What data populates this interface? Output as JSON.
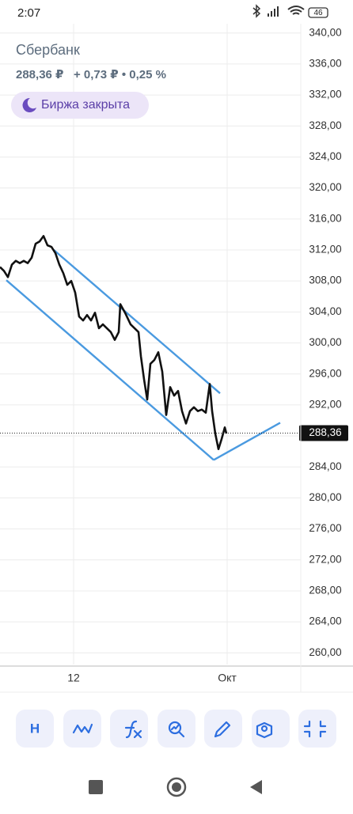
{
  "status_bar": {
    "time": "2:07",
    "battery": "46"
  },
  "header": {
    "title": "Сбербанк",
    "quote": "288,36 ₽   + 0,73 ₽ • 0,25 %",
    "badge": "Биржа закрыта"
  },
  "chart_data": {
    "type": "line",
    "x": [
      0,
      5,
      10,
      15,
      20,
      25,
      30,
      35,
      40,
      45,
      50,
      55,
      60,
      65,
      70,
      75,
      80,
      85,
      90,
      95,
      100,
      105,
      110,
      115,
      120,
      125,
      130,
      135,
      140,
      145,
      150,
      152,
      158,
      165,
      170,
      175,
      178,
      182,
      186,
      190,
      195,
      200,
      205,
      210,
      215,
      220,
      225,
      230,
      235,
      240,
      245,
      250,
      255,
      260,
      265,
      268,
      272,
      276,
      280,
      284,
      286
    ],
    "series": [
      {
        "color": "#111111",
        "values": [
          309.8,
          309.3,
          308.5,
          310.1,
          310.6,
          310.3,
          310.6,
          310.3,
          311.0,
          312.8,
          313.1,
          313.8,
          312.6,
          312.4,
          311.6,
          310.1,
          309.0,
          307.5,
          308.0,
          306.5,
          303.4,
          302.9,
          303.6,
          302.9,
          303.9,
          301.9,
          302.4,
          301.9,
          301.4,
          300.4,
          301.4,
          305.0,
          303.9,
          302.4,
          301.9,
          301.4,
          298.3,
          295.3,
          292.7,
          297.3,
          297.8,
          298.8,
          296.3,
          290.7,
          294.3,
          293.2,
          293.8,
          291.2,
          289.6,
          291.2,
          291.7,
          291.2,
          291.4,
          291.0,
          294.7,
          291.2,
          288.3,
          286.3,
          287.6,
          289.1,
          288.3
        ]
      }
    ],
    "trend_lines": [
      {
        "color": "#4a9ae0",
        "x": [
          68,
          278
        ],
        "y": [
          312.0,
          293.5
        ]
      },
      {
        "color": "#4a9ae0",
        "x": [
          8,
          270
        ],
        "y": [
          308.1,
          284.9
        ]
      },
      {
        "color": "#4a9ae0",
        "x": [
          270,
          354
        ],
        "y": [
          284.9,
          289.7
        ]
      }
    ],
    "price_line": {
      "value": 288.36,
      "label": "288,36"
    },
    "xlim": [
      0,
      380
    ],
    "xticks": [
      {
        "value": 93,
        "label": "12"
      },
      {
        "value": 287,
        "label": "Окт"
      }
    ],
    "ylim": [
      258.5,
      341.2
    ],
    "yticks": [
      {
        "value": 260,
        "label": "260,00"
      },
      {
        "value": 264,
        "label": "264,00"
      },
      {
        "value": 268,
        "label": "268,00"
      },
      {
        "value": 272,
        "label": "272,00"
      },
      {
        "value": 276,
        "label": "276,00"
      },
      {
        "value": 280,
        "label": "280,00"
      },
      {
        "value": 284,
        "label": "284,00"
      },
      {
        "value": 288,
        "label": "288,00"
      },
      {
        "value": 292,
        "label": "292,00"
      },
      {
        "value": 296,
        "label": "296,00"
      },
      {
        "value": 300,
        "label": "300,00"
      },
      {
        "value": 304,
        "label": "304,00"
      },
      {
        "value": 308,
        "label": "308,00"
      },
      {
        "value": 312,
        "label": "312,00"
      },
      {
        "value": 316,
        "label": "316,00"
      },
      {
        "value": 320,
        "label": "320,00"
      },
      {
        "value": 324,
        "label": "324,00"
      },
      {
        "value": 328,
        "label": "328,00"
      },
      {
        "value": 332,
        "label": "332,00"
      },
      {
        "value": 336,
        "label": "336,00"
      },
      {
        "value": 340,
        "label": "340,00"
      }
    ],
    "grid": true
  },
  "toolbar": {
    "first_button": "H"
  }
}
